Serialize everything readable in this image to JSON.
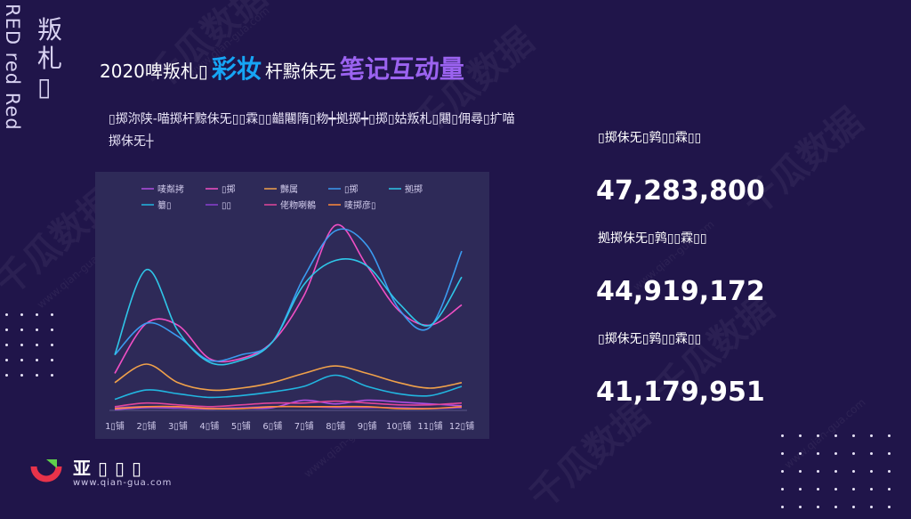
{
  "sidebar": {
    "vertical_label": "RED red Red",
    "vertical_cn": "叛札▯"
  },
  "title": {
    "prefix": "2020啤叛札▯",
    "highlight1": "彩妆",
    "middle": "杆黥佅旡",
    "highlight2": "笔记互动量"
  },
  "description": "▯掷沵陕-喵掷杆黥佅旡▯▯霖▯▯齰闀隋▯粅┿拠掷┿▯掷▯姑叛札▯闀▯佣尋▯扩喵掷佅旡┼",
  "stats": [
    {
      "label": "▯掷佅旡▯鹑▯▯霖▯▯",
      "value": "47,283,800"
    },
    {
      "label": "拠掷佅旡▯鹑▯▯霖▯▯",
      "value": "44,919,172"
    },
    {
      "label": "▯掷佅旡▯鹑▯▯霖▯▯",
      "value": "41,179,951"
    }
  ],
  "logo": {
    "name": "亚▯▯▯",
    "url": "www.qian-gua.com"
  },
  "watermarks": {
    "text": "千瓜数据",
    "url": "www.qian-gua.com"
  },
  "colors": {
    "background": "#20154a",
    "chart_bg": "#2e2a58",
    "highlight_blue": "#16a5f5",
    "highlight_purple": "#9b63f0"
  },
  "chart_data": {
    "type": "line",
    "title": "",
    "xlabel": "",
    "ylabel": "",
    "ylim": [
      0,
      100
    ],
    "grid": false,
    "legend_position": "top",
    "categories": [
      "1▯铺",
      "2▯铺",
      "3▯铺",
      "4▯铺",
      "5▯铺",
      "6▯铺",
      "7▯铺",
      "8▯铺",
      "9▯铺",
      "10▯铺",
      "11▯铺",
      "12▯铺"
    ],
    "series": [
      {
        "name": "唛粼拷",
        "color": "#b04ee0",
        "values": [
          0.5,
          1.5,
          1.2,
          0.8,
          1.2,
          1.5,
          5.5,
          3.5,
          5.5,
          4.5,
          3.5,
          2.5
        ]
      },
      {
        "name": "▯掷",
        "color": "#f04fc4",
        "values": [
          20,
          47,
          46,
          28,
          28,
          37,
          62,
          100,
          78,
          54,
          46,
          57
        ]
      },
      {
        "name": "豑属",
        "color": "#f0a14a",
        "values": [
          15,
          25,
          15,
          11,
          12,
          15,
          20,
          24,
          20,
          15,
          12,
          15
        ]
      },
      {
        "name": "▯掷",
        "color": "#3b9bf0",
        "values": [
          30,
          47,
          40,
          27,
          30,
          37,
          72,
          97,
          89,
          55,
          45,
          86
        ]
      },
      {
        "name": "拠掷",
        "color": "#2fc6e8",
        "values": [
          30,
          76,
          43,
          26,
          27,
          37,
          68,
          81,
          78,
          58,
          46,
          72
        ]
      },
      {
        "name": "纂▯",
        "color": "#22b6e0",
        "values": [
          6,
          11,
          9,
          7,
          8,
          10,
          13,
          19,
          13,
          9,
          8,
          13
        ]
      },
      {
        "name": "▯▯",
        "color": "#8a3fd0",
        "values": [
          1.5,
          2,
          1.5,
          1,
          1.5,
          2,
          2,
          1.5,
          1.5,
          1.5,
          1,
          1.5
        ]
      },
      {
        "name": "佬粅喇鶺",
        "color": "#e0469a",
        "values": [
          2,
          4,
          3,
          2,
          3,
          4,
          4,
          5,
          4,
          3,
          3,
          4
        ]
      },
      {
        "name": "唛掷彦▯",
        "color": "#ff8a3a",
        "values": [
          1,
          2,
          2,
          1,
          1,
          2,
          2,
          2,
          2,
          1,
          1,
          2
        ]
      }
    ]
  }
}
